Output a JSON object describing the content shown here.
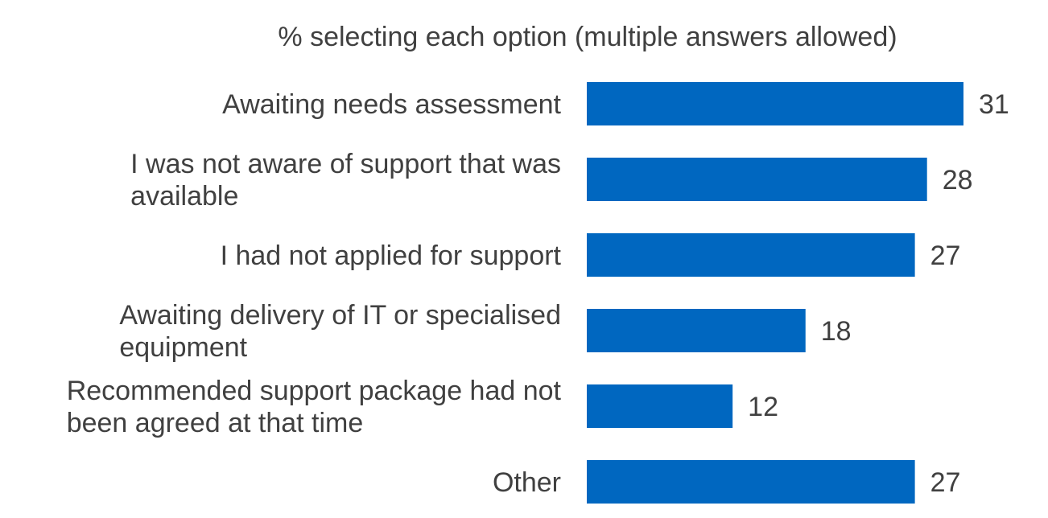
{
  "chart_data": {
    "type": "bar",
    "orientation": "horizontal",
    "title": "% selecting each option (multiple answers allowed)",
    "categories": [
      "Awaiting needs assessment",
      "I was not aware of support that was available",
      "I had not applied for support",
      "Awaiting delivery of IT or specialised equipment",
      "Recommended support package had not been agreed at that time",
      "Other"
    ],
    "category_lines": [
      [
        "Awaiting needs assessment"
      ],
      [
        "I was not aware of support that was",
        "available"
      ],
      [
        "I had not applied for support"
      ],
      [
        "Awaiting delivery of IT or specialised",
        "equipment"
      ],
      [
        "Recommended support package had not",
        "been agreed at that time"
      ],
      [
        "Other"
      ]
    ],
    "values": [
      31,
      28,
      27,
      18,
      12,
      27
    ],
    "data_labels": [
      "31",
      "28",
      "27",
      "18",
      "12",
      "27"
    ],
    "xlim": [
      0,
      31
    ],
    "grid": false,
    "legend": "none",
    "colors": {
      "bar": "#0067c0",
      "text": "#404040"
    }
  }
}
